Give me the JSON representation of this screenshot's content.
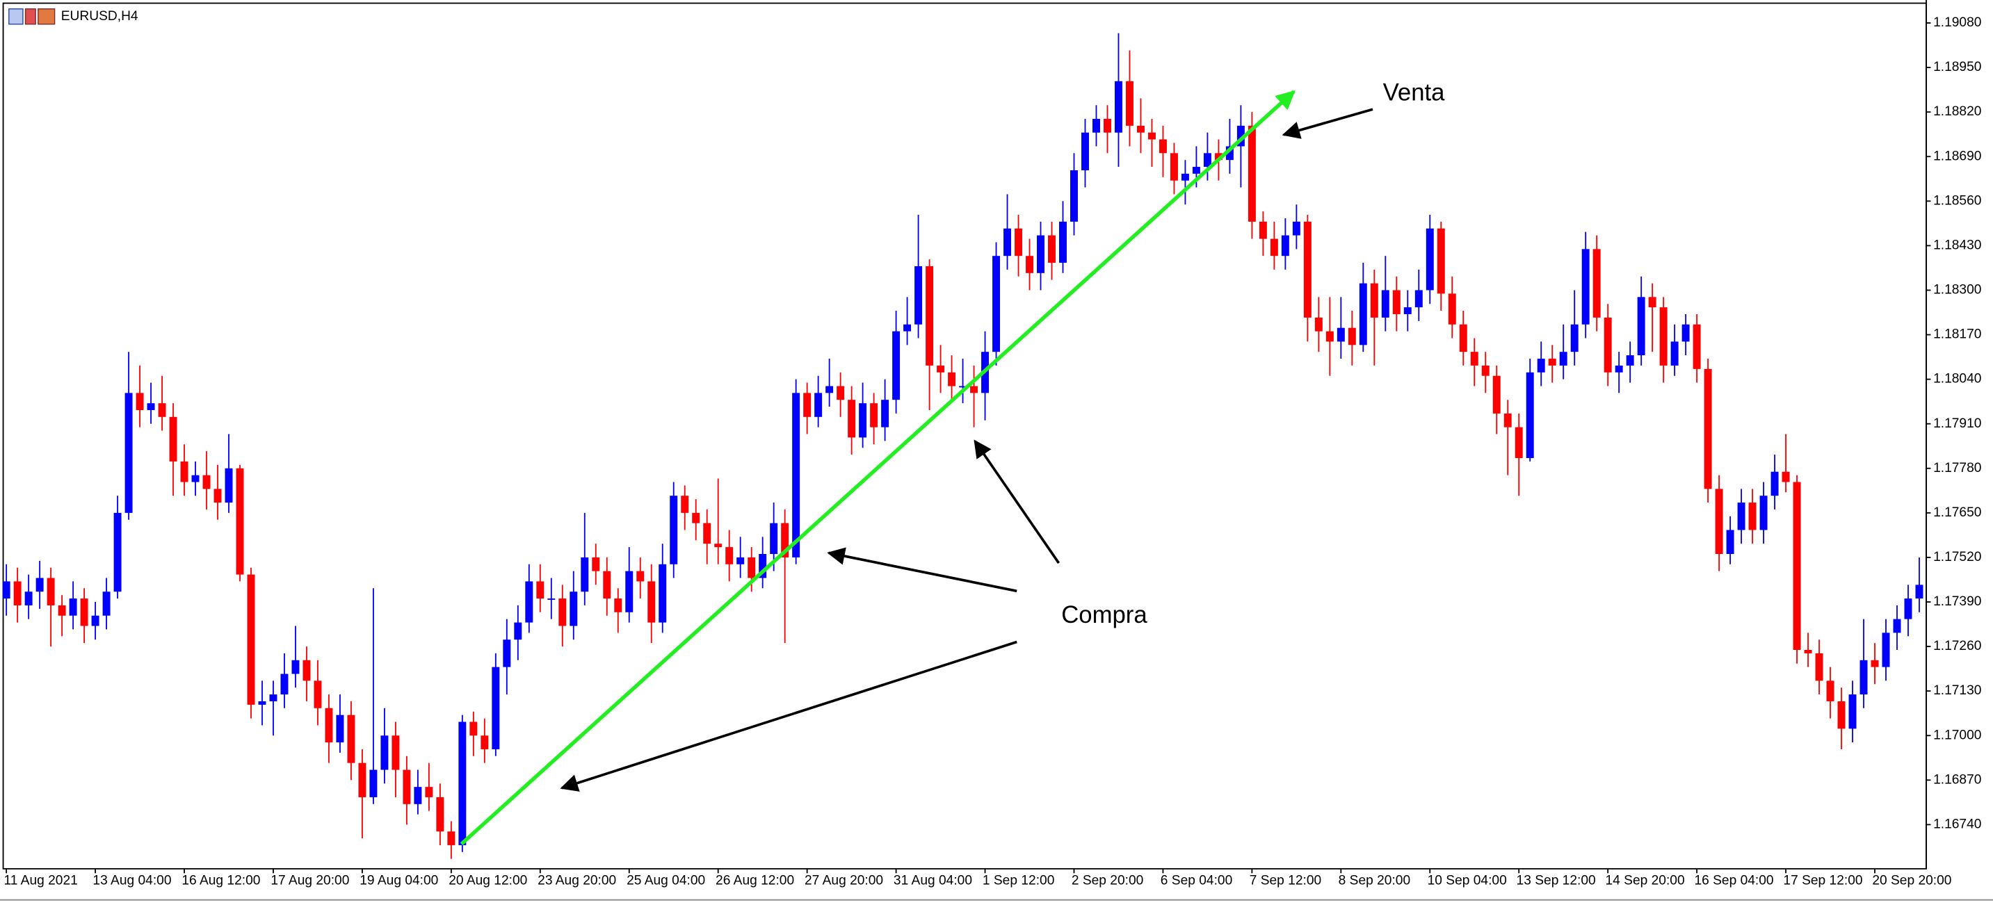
{
  "chart_data": {
    "type": "candlestick",
    "symbol": "EURUSD,H4",
    "annotations": [
      "Venta",
      "Compra"
    ],
    "up_color": "#0000ff",
    "down_color": "#ff0000",
    "ylim": [
      1.16613,
      1.19147
    ],
    "yticks": [
      {
        "value": 1.1908,
        "label": "1.19080"
      },
      {
        "value": 1.1895,
        "label": "1.18950"
      },
      {
        "value": 1.1882,
        "label": "1.18820"
      },
      {
        "value": 1.1869,
        "label": "1.18690"
      },
      {
        "value": 1.1856,
        "label": "1.18560"
      },
      {
        "value": 1.1843,
        "label": "1.18430"
      },
      {
        "value": 1.183,
        "label": "1.18300"
      },
      {
        "value": 1.1817,
        "label": "1.18170"
      },
      {
        "value": 1.1804,
        "label": "1.18040"
      },
      {
        "value": 1.1791,
        "label": "1.17910"
      },
      {
        "value": 1.1778,
        "label": "1.17780"
      },
      {
        "value": 1.1765,
        "label": "1.17650"
      },
      {
        "value": 1.1752,
        "label": "1.17520"
      },
      {
        "value": 1.1739,
        "label": "1.17390"
      },
      {
        "value": 1.1726,
        "label": "1.17260"
      },
      {
        "value": 1.1713,
        "label": "1.17130"
      },
      {
        "value": 1.17,
        "label": "1.17000"
      },
      {
        "value": 1.1687,
        "label": "1.16870"
      },
      {
        "value": 1.1674,
        "label": "1.16740"
      }
    ],
    "categories": [
      "11 Aug 2021",
      null,
      null,
      null,
      null,
      null,
      null,
      null,
      "13 Aug 04:00",
      null,
      null,
      null,
      null,
      null,
      null,
      null,
      "16 Aug 12:00",
      null,
      null,
      null,
      null,
      null,
      null,
      null,
      "17 Aug 20:00",
      null,
      null,
      null,
      null,
      null,
      null,
      null,
      "19 Aug 04:00",
      null,
      null,
      null,
      null,
      null,
      null,
      null,
      "20 Aug 12:00",
      null,
      null,
      null,
      null,
      null,
      null,
      null,
      "23 Aug 20:00",
      null,
      null,
      null,
      null,
      null,
      null,
      null,
      "25 Aug 04:00",
      null,
      null,
      null,
      null,
      null,
      null,
      null,
      "26 Aug 12:00",
      null,
      null,
      null,
      null,
      null,
      null,
      null,
      "27 Aug 20:00",
      null,
      null,
      null,
      null,
      null,
      null,
      null,
      "31 Aug 04:00",
      null,
      null,
      null,
      null,
      null,
      null,
      null,
      "1 Sep 12:00",
      null,
      null,
      null,
      null,
      null,
      null,
      null,
      "2 Sep 20:00",
      null,
      null,
      null,
      null,
      null,
      null,
      null,
      "6 Sep 04:00",
      null,
      null,
      null,
      null,
      null,
      null,
      null,
      "7 Sep 12:00",
      null,
      null,
      null,
      null,
      null,
      null,
      null,
      "8 Sep 20:00",
      null,
      null,
      null,
      null,
      null,
      null,
      null,
      "10 Sep 04:00",
      null,
      null,
      null,
      null,
      null,
      null,
      null,
      "13 Sep 12:00",
      null,
      null,
      null,
      null,
      null,
      null,
      null,
      "14 Sep 20:00",
      null,
      null,
      null,
      null,
      null,
      null,
      null,
      "16 Sep 04:00",
      null,
      null,
      null,
      null,
      null,
      null,
      null,
      "17 Sep 12:00",
      null,
      null,
      null,
      null,
      null,
      null,
      null,
      "20 Sep 20:00",
      null,
      null,
      null,
      null
    ],
    "candles": [
      [
        1.174,
        1.175,
        1.1735,
        1.1745
      ],
      [
        1.1745,
        1.1749,
        1.1733,
        1.1738
      ],
      [
        1.1738,
        1.1747,
        1.1734,
        1.1742
      ],
      [
        1.1742,
        1.1751,
        1.1737,
        1.1746
      ],
      [
        1.1746,
        1.1749,
        1.1726,
        1.1738
      ],
      [
        1.1738,
        1.1741,
        1.1729,
        1.1735
      ],
      [
        1.1735,
        1.1745,
        1.1731,
        1.174
      ],
      [
        1.174,
        1.1743,
        1.1727,
        1.1732
      ],
      [
        1.1732,
        1.1739,
        1.1728,
        1.1735
      ],
      [
        1.1735,
        1.1746,
        1.1731,
        1.1742
      ],
      [
        1.1742,
        1.177,
        1.174,
        1.1765
      ],
      [
        1.1765,
        1.1812,
        1.1763,
        1.18
      ],
      [
        1.18,
        1.1808,
        1.179,
        1.1795
      ],
      [
        1.1795,
        1.1803,
        1.1791,
        1.1797
      ],
      [
        1.1797,
        1.1805,
        1.1789,
        1.1793
      ],
      [
        1.1793,
        1.1797,
        1.177,
        1.178
      ],
      [
        1.178,
        1.1785,
        1.177,
        1.1774
      ],
      [
        1.1774,
        1.178,
        1.177,
        1.1776
      ],
      [
        1.1776,
        1.1783,
        1.1766,
        1.1772
      ],
      [
        1.1772,
        1.1779,
        1.1763,
        1.1768
      ],
      [
        1.1768,
        1.1788,
        1.1765,
        1.1778
      ],
      [
        1.1778,
        1.1779,
        1.1745,
        1.1747
      ],
      [
        1.1747,
        1.1749,
        1.1705,
        1.1709
      ],
      [
        1.1709,
        1.1716,
        1.1703,
        1.171
      ],
      [
        1.171,
        1.1716,
        1.17,
        1.1712
      ],
      [
        1.1712,
        1.1724,
        1.1708,
        1.1718
      ],
      [
        1.1718,
        1.1732,
        1.1714,
        1.1722
      ],
      [
        1.1722,
        1.1726,
        1.171,
        1.1716
      ],
      [
        1.1716,
        1.1722,
        1.1703,
        1.1708
      ],
      [
        1.1708,
        1.1712,
        1.1692,
        1.1698
      ],
      [
        1.1698,
        1.1712,
        1.1695,
        1.1706
      ],
      [
        1.1706,
        1.171,
        1.1687,
        1.1692
      ],
      [
        1.1692,
        1.1696,
        1.167,
        1.1682
      ],
      [
        1.1682,
        1.1743,
        1.168,
        1.169
      ],
      [
        1.169,
        1.1708,
        1.1686,
        1.17
      ],
      [
        1.17,
        1.1704,
        1.1682,
        1.169
      ],
      [
        1.169,
        1.1694,
        1.1674,
        1.168
      ],
      [
        1.168,
        1.169,
        1.1677,
        1.1685
      ],
      [
        1.1685,
        1.1692,
        1.1678,
        1.1682
      ],
      [
        1.1682,
        1.1686,
        1.1668,
        1.1672
      ],
      [
        1.1672,
        1.1675,
        1.1664,
        1.1668
      ],
      [
        1.1668,
        1.1706,
        1.1666,
        1.1704
      ],
      [
        1.1704,
        1.1707,
        1.1694,
        1.17
      ],
      [
        1.17,
        1.1705,
        1.1692,
        1.1696
      ],
      [
        1.1696,
        1.1724,
        1.1694,
        1.172
      ],
      [
        1.172,
        1.1734,
        1.1712,
        1.1728
      ],
      [
        1.1728,
        1.1738,
        1.1722,
        1.1733
      ],
      [
        1.1733,
        1.175,
        1.173,
        1.1745
      ],
      [
        1.1745,
        1.175,
        1.1736,
        1.174
      ],
      [
        1.174,
        1.1746,
        1.1734,
        1.174
      ],
      [
        1.174,
        1.1744,
        1.1726,
        1.1732
      ],
      [
        1.1732,
        1.1748,
        1.1728,
        1.1742
      ],
      [
        1.1742,
        1.1765,
        1.1738,
        1.1752
      ],
      [
        1.1752,
        1.1756,
        1.1744,
        1.1748
      ],
      [
        1.1748,
        1.1752,
        1.1735,
        1.174
      ],
      [
        1.174,
        1.1743,
        1.173,
        1.1736
      ],
      [
        1.1736,
        1.1755,
        1.1733,
        1.1748
      ],
      [
        1.1748,
        1.1752,
        1.174,
        1.1745
      ],
      [
        1.1745,
        1.175,
        1.1727,
        1.1733
      ],
      [
        1.1733,
        1.1756,
        1.173,
        1.175
      ],
      [
        1.175,
        1.1774,
        1.1746,
        1.177
      ],
      [
        1.177,
        1.1773,
        1.176,
        1.1765
      ],
      [
        1.1765,
        1.1769,
        1.1757,
        1.1762
      ],
      [
        1.1762,
        1.1766,
        1.175,
        1.1756
      ],
      [
        1.1756,
        1.1775,
        1.175,
        1.1755
      ],
      [
        1.1755,
        1.176,
        1.1745,
        1.175
      ],
      [
        1.175,
        1.1758,
        1.1746,
        1.1752
      ],
      [
        1.1752,
        1.1755,
        1.1742,
        1.1746
      ],
      [
        1.1746,
        1.1758,
        1.1743,
        1.1753
      ],
      [
        1.1753,
        1.1768,
        1.1748,
        1.1762
      ],
      [
        1.1762,
        1.1766,
        1.1727,
        1.1752
      ],
      [
        1.1752,
        1.1804,
        1.175,
        1.18
      ],
      [
        1.18,
        1.1803,
        1.1788,
        1.1793
      ],
      [
        1.1793,
        1.1805,
        1.179,
        1.18
      ],
      [
        1.18,
        1.181,
        1.1796,
        1.1802
      ],
      [
        1.1802,
        1.1806,
        1.1793,
        1.1798
      ],
      [
        1.1798,
        1.1802,
        1.1782,
        1.1787
      ],
      [
        1.1787,
        1.1803,
        1.1784,
        1.1797
      ],
      [
        1.1797,
        1.18,
        1.1785,
        1.179
      ],
      [
        1.179,
        1.1804,
        1.1786,
        1.1798
      ],
      [
        1.1798,
        1.1824,
        1.1794,
        1.1818
      ],
      [
        1.1818,
        1.1828,
        1.1814,
        1.182
      ],
      [
        1.182,
        1.1852,
        1.1816,
        1.1837
      ],
      [
        1.1837,
        1.1839,
        1.1795,
        1.1808
      ],
      [
        1.1808,
        1.1814,
        1.18,
        1.1806
      ],
      [
        1.1806,
        1.1811,
        1.1798,
        1.1802
      ],
      [
        1.1802,
        1.181,
        1.1797,
        1.1802
      ],
      [
        1.1802,
        1.1808,
        1.179,
        1.18
      ],
      [
        1.18,
        1.1818,
        1.1792,
        1.1812
      ],
      [
        1.1812,
        1.1844,
        1.1808,
        1.184
      ],
      [
        1.184,
        1.1858,
        1.1836,
        1.1848
      ],
      [
        1.1848,
        1.1852,
        1.1834,
        1.184
      ],
      [
        1.184,
        1.1845,
        1.183,
        1.1835
      ],
      [
        1.1835,
        1.185,
        1.183,
        1.1846
      ],
      [
        1.1846,
        1.185,
        1.1833,
        1.1838
      ],
      [
        1.1838,
        1.1856,
        1.1835,
        1.185
      ],
      [
        1.185,
        1.187,
        1.1846,
        1.1865
      ],
      [
        1.1865,
        1.188,
        1.186,
        1.1876
      ],
      [
        1.1876,
        1.1884,
        1.1872,
        1.188
      ],
      [
        1.188,
        1.1884,
        1.187,
        1.1876
      ],
      [
        1.1876,
        1.1905,
        1.1866,
        1.1891
      ],
      [
        1.1891,
        1.19,
        1.1872,
        1.1878
      ],
      [
        1.1878,
        1.1886,
        1.187,
        1.1876
      ],
      [
        1.1876,
        1.188,
        1.1866,
        1.1874
      ],
      [
        1.1874,
        1.1878,
        1.1863,
        1.187
      ],
      [
        1.187,
        1.1873,
        1.1858,
        1.1862
      ],
      [
        1.1862,
        1.1868,
        1.1855,
        1.1864
      ],
      [
        1.1864,
        1.1872,
        1.186,
        1.1866
      ],
      [
        1.1866,
        1.1876,
        1.1862,
        1.187
      ],
      [
        1.187,
        1.1874,
        1.1862,
        1.1868
      ],
      [
        1.1868,
        1.188,
        1.1864,
        1.1872
      ],
      [
        1.1872,
        1.1884,
        1.186,
        1.1878
      ],
      [
        1.1878,
        1.1882,
        1.1845,
        1.185
      ],
      [
        1.185,
        1.1853,
        1.184,
        1.1845
      ],
      [
        1.1845,
        1.185,
        1.1836,
        1.184
      ],
      [
        1.184,
        1.1851,
        1.1836,
        1.1846
      ],
      [
        1.1846,
        1.1855,
        1.1842,
        1.185
      ],
      [
        1.185,
        1.1852,
        1.1815,
        1.1822
      ],
      [
        1.1822,
        1.1828,
        1.1812,
        1.1818
      ],
      [
        1.1818,
        1.1828,
        1.1805,
        1.1815
      ],
      [
        1.1815,
        1.1828,
        1.181,
        1.1819
      ],
      [
        1.1819,
        1.1824,
        1.1808,
        1.1814
      ],
      [
        1.1814,
        1.1838,
        1.1812,
        1.1832
      ],
      [
        1.1832,
        1.1836,
        1.1808,
        1.1822
      ],
      [
        1.1822,
        1.184,
        1.1818,
        1.183
      ],
      [
        1.183,
        1.1834,
        1.1818,
        1.1823
      ],
      [
        1.1823,
        1.183,
        1.1818,
        1.1825
      ],
      [
        1.1825,
        1.1836,
        1.1821,
        1.183
      ],
      [
        1.183,
        1.1852,
        1.1826,
        1.1848
      ],
      [
        1.1848,
        1.185,
        1.1824,
        1.1829
      ],
      [
        1.1829,
        1.1834,
        1.1816,
        1.182
      ],
      [
        1.182,
        1.1824,
        1.1808,
        1.1812
      ],
      [
        1.1812,
        1.1816,
        1.1802,
        1.1808
      ],
      [
        1.1808,
        1.1812,
        1.18,
        1.1805
      ],
      [
        1.1805,
        1.1808,
        1.1788,
        1.1794
      ],
      [
        1.1794,
        1.1798,
        1.1776,
        1.179
      ],
      [
        1.179,
        1.1794,
        1.177,
        1.1781
      ],
      [
        1.1781,
        1.181,
        1.178,
        1.1806
      ],
      [
        1.1806,
        1.1815,
        1.1802,
        1.181
      ],
      [
        1.181,
        1.1814,
        1.1803,
        1.1808
      ],
      [
        1.1808,
        1.182,
        1.1804,
        1.1812
      ],
      [
        1.1812,
        1.183,
        1.1808,
        1.182
      ],
      [
        1.182,
        1.1847,
        1.1816,
        1.1842
      ],
      [
        1.1842,
        1.1846,
        1.1818,
        1.1822
      ],
      [
        1.1822,
        1.1826,
        1.1802,
        1.1806
      ],
      [
        1.1806,
        1.1812,
        1.18,
        1.1808
      ],
      [
        1.1808,
        1.1815,
        1.1803,
        1.1811
      ],
      [
        1.1811,
        1.1834,
        1.1808,
        1.1828
      ],
      [
        1.1828,
        1.1832,
        1.1812,
        1.1825
      ],
      [
        1.1825,
        1.1828,
        1.1803,
        1.1808
      ],
      [
        1.1808,
        1.182,
        1.1805,
        1.1815
      ],
      [
        1.1815,
        1.1823,
        1.1811,
        1.182
      ],
      [
        1.182,
        1.1823,
        1.1803,
        1.1807
      ],
      [
        1.1807,
        1.181,
        1.1768,
        1.1772
      ],
      [
        1.1772,
        1.1776,
        1.1748,
        1.1753
      ],
      [
        1.1753,
        1.1764,
        1.175,
        1.176
      ],
      [
        1.176,
        1.1772,
        1.1756,
        1.1768
      ],
      [
        1.1768,
        1.1772,
        1.1756,
        1.176
      ],
      [
        1.176,
        1.1774,
        1.1756,
        1.177
      ],
      [
        1.177,
        1.1782,
        1.1766,
        1.1777
      ],
      [
        1.1777,
        1.1788,
        1.1771,
        1.1774
      ],
      [
        1.1774,
        1.1776,
        1.1721,
        1.1725
      ],
      [
        1.1725,
        1.173,
        1.172,
        1.1724
      ],
      [
        1.1724,
        1.1728,
        1.1712,
        1.1716
      ],
      [
        1.1716,
        1.172,
        1.1705,
        1.171
      ],
      [
        1.171,
        1.1714,
        1.1696,
        1.1702
      ],
      [
        1.1702,
        1.1716,
        1.1698,
        1.1712
      ],
      [
        1.1712,
        1.1734,
        1.1708,
        1.1722
      ],
      [
        1.1722,
        1.1727,
        1.1715,
        1.172
      ],
      [
        1.172,
        1.1734,
        1.1716,
        1.173
      ],
      [
        1.173,
        1.1738,
        1.1725,
        1.1734
      ],
      [
        1.1734,
        1.1744,
        1.1729,
        1.174
      ],
      [
        1.174,
        1.1752,
        1.1736,
        1.1744
      ]
    ]
  }
}
